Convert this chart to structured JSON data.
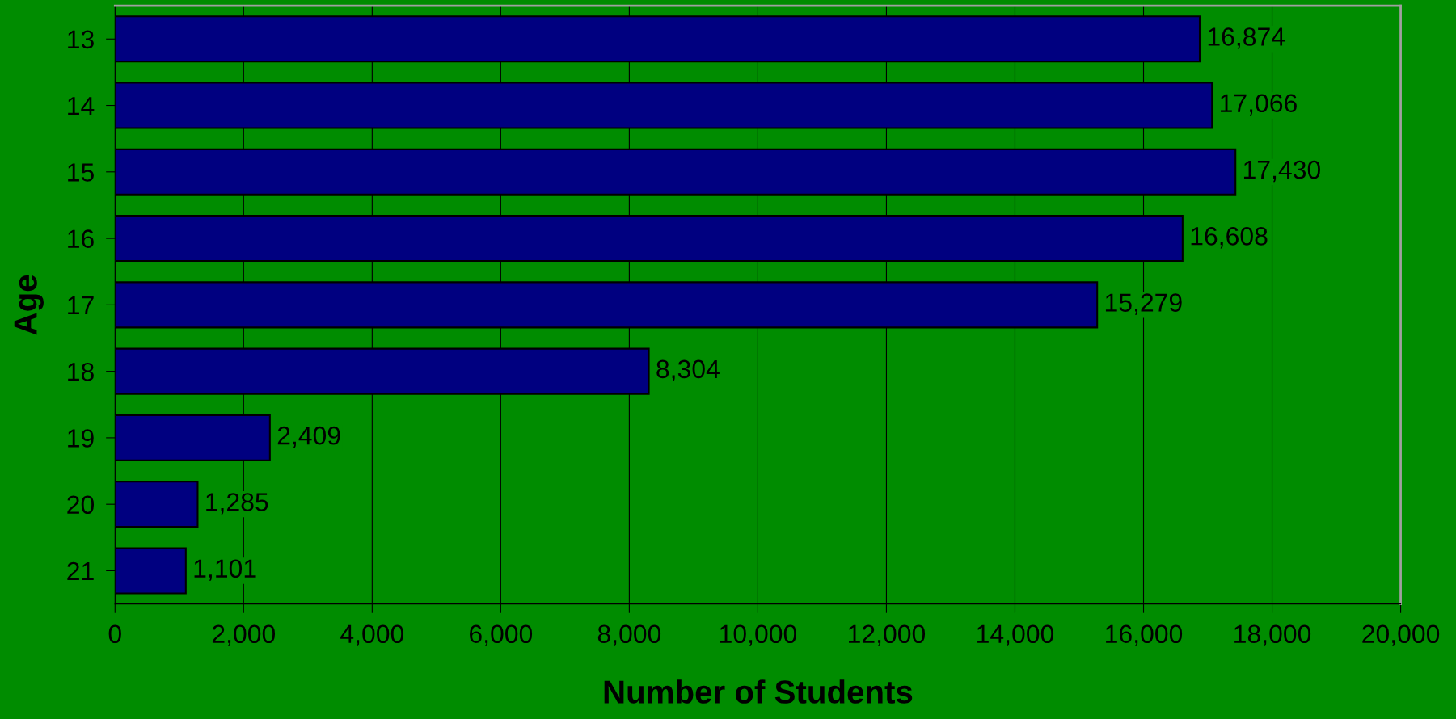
{
  "chart_data": {
    "type": "bar",
    "orientation": "horizontal",
    "xlabel": "Number of Students",
    "ylabel": "Age",
    "categories": [
      "13",
      "14",
      "15",
      "16",
      "17",
      "18",
      "19",
      "20",
      "21"
    ],
    "values": [
      16874,
      17066,
      17430,
      16608,
      15279,
      8304,
      2409,
      1285,
      1101
    ],
    "value_labels": [
      "16,874",
      "17,066",
      "17,430",
      "16,608",
      "15,279",
      "8,304",
      "2,409",
      "1,285",
      "1,101"
    ],
    "color": "#000080",
    "xlim": [
      0,
      20000
    ],
    "xticks": [
      {
        "value": 0,
        "label": "0"
      },
      {
        "value": 2000,
        "label": "2,000"
      },
      {
        "value": 4000,
        "label": "4,000"
      },
      {
        "value": 6000,
        "label": "6,000"
      },
      {
        "value": 8000,
        "label": "8,000"
      },
      {
        "value": 10000,
        "label": "10,000"
      },
      {
        "value": 12000,
        "label": "12,000"
      },
      {
        "value": 14000,
        "label": "14,000"
      },
      {
        "value": 16000,
        "label": "16,000"
      },
      {
        "value": 18000,
        "label": "18,000"
      },
      {
        "value": 20000,
        "label": "20,000"
      }
    ],
    "grid": "x",
    "legend": false
  }
}
